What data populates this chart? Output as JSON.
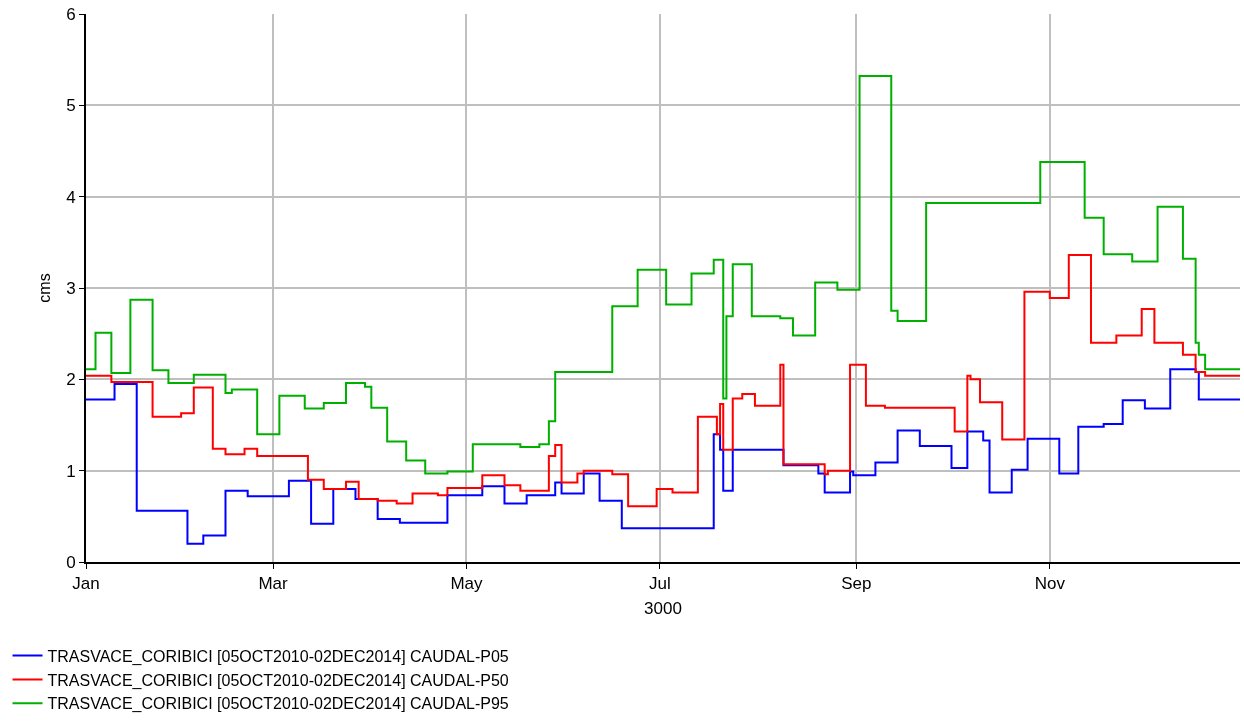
{
  "chart_data": {
    "type": "step",
    "xlabel": "3000",
    "ylabel": "cms",
    "xlim": [
      "3000-01-01",
      "3000-12-31"
    ],
    "xticks": [
      {
        "value": "3000-01-01",
        "label": "Jan"
      },
      {
        "value": "3000-03-01",
        "label": "Mar"
      },
      {
        "value": "3000-05-01",
        "label": "May"
      },
      {
        "value": "3000-07-01",
        "label": "Jul"
      },
      {
        "value": "3000-09-01",
        "label": "Sep"
      },
      {
        "value": "3000-11-01",
        "label": "Nov"
      }
    ],
    "ylim": [
      0,
      6
    ],
    "yticks": [
      0,
      1,
      2,
      3,
      4,
      5,
      6
    ],
    "grid": true,
    "legend": "bottom",
    "line_style": "solid",
    "marker": "none",
    "series": [
      {
        "name": "TRASVACE_CORIBICI [05OCT2010-02DEC2014] CAUDAL-P05",
        "color": "#0000ff",
        "x": [
          "3000-01-01",
          "3000-01-10",
          "3000-01-17",
          "3000-02-02",
          "3000-02-07",
          "3000-02-14",
          "3000-02-21",
          "3000-03-06",
          "3000-03-13",
          "3000-03-20",
          "3000-03-27",
          "3000-04-03",
          "3000-04-10",
          "3000-04-25",
          "3000-05-06",
          "3000-05-13",
          "3000-05-20",
          "3000-05-29",
          "3000-05-31",
          "3000-06-07",
          "3000-06-12",
          "3000-06-19",
          "3000-07-18",
          "3000-07-20",
          "3000-07-21",
          "3000-07-24",
          "3000-08-09",
          "3000-08-20",
          "3000-08-22",
          "3000-08-30",
          "3000-08-31",
          "3000-09-07",
          "3000-09-14",
          "3000-09-21",
          "3000-10-01",
          "3000-10-06",
          "3000-10-11",
          "3000-10-13",
          "3000-10-20",
          "3000-10-25",
          "3000-11-04",
          "3000-11-10",
          "3000-11-18",
          "3000-11-24",
          "3000-12-01",
          "3000-12-09",
          "3000-12-17",
          "3000-12-18",
          "3000-12-31"
        ],
        "values": [
          1.78,
          1.95,
          0.56,
          0.2,
          0.29,
          0.78,
          0.72,
          0.89,
          0.42,
          0.8,
          0.69,
          0.47,
          0.43,
          0.73,
          0.83,
          0.64,
          0.73,
          0.87,
          0.75,
          0.97,
          0.67,
          0.37,
          1.4,
          1.23,
          0.78,
          1.23,
          1.06,
          0.97,
          0.76,
          0.99,
          0.95,
          1.09,
          1.44,
          1.27,
          1.03,
          1.43,
          1.33,
          0.76,
          1.01,
          1.35,
          0.97,
          1.48,
          1.51,
          1.77,
          1.68,
          2.11,
          2.08,
          1.78,
          1.78
        ]
      },
      {
        "name": "TRASVACE_CORIBICI [05OCT2010-02DEC2014] CAUDAL-P50",
        "color": "#ff0000",
        "x": [
          "3000-01-01",
          "3000-01-09",
          "3000-01-22",
          "3000-01-31",
          "3000-02-04",
          "3000-02-10",
          "3000-02-14",
          "3000-02-20",
          "3000-02-24",
          "3000-03-12",
          "3000-03-17",
          "3000-03-24",
          "3000-03-28",
          "3000-04-03",
          "3000-04-09",
          "3000-04-14",
          "3000-04-22",
          "3000-04-25",
          "3000-05-06",
          "3000-05-13",
          "3000-05-18",
          "3000-05-27",
          "3000-05-29",
          "3000-05-31",
          "3000-06-05",
          "3000-06-07",
          "3000-06-16",
          "3000-06-21",
          "3000-06-30",
          "3000-07-05",
          "3000-07-13",
          "3000-07-19",
          "3000-07-20",
          "3000-07-21",
          "3000-07-24",
          "3000-07-27",
          "3000-07-31",
          "3000-08-08",
          "3000-08-09",
          "3000-08-22",
          "3000-08-23",
          "3000-08-30",
          "3000-09-04",
          "3000-09-10",
          "3000-10-02",
          "3000-10-06",
          "3000-10-07",
          "3000-10-10",
          "3000-10-17",
          "3000-10-24",
          "3000-11-01",
          "3000-11-07",
          "3000-11-14",
          "3000-11-22",
          "3000-11-30",
          "3000-12-04",
          "3000-12-13",
          "3000-12-17",
          "3000-12-20",
          "3000-12-31"
        ],
        "values": [
          2.04,
          1.97,
          1.59,
          1.63,
          1.91,
          1.24,
          1.18,
          1.24,
          1.16,
          0.9,
          0.8,
          0.88,
          0.69,
          0.67,
          0.64,
          0.75,
          0.73,
          0.81,
          0.95,
          0.84,
          0.78,
          1.16,
          1.28,
          0.87,
          0.97,
          1.0,
          0.96,
          0.61,
          0.8,
          0.76,
          1.59,
          1.4,
          1.73,
          1.23,
          1.79,
          1.84,
          1.71,
          2.16,
          1.07,
          0.96,
          1.0,
          2.16,
          1.71,
          1.69,
          1.43,
          2.04,
          2.0,
          1.75,
          1.34,
          2.96,
          2.89,
          3.36,
          2.4,
          2.48,
          2.77,
          2.4,
          2.27,
          2.08,
          2.04,
          2.04
        ]
      },
      {
        "name": "TRASVACE_CORIBICI [05OCT2010-02DEC2014] CAUDAL-P95",
        "color": "#00b000",
        "x": [
          "3000-01-01",
          "3000-01-04",
          "3000-01-09",
          "3000-01-15",
          "3000-01-22",
          "3000-01-27",
          "3000-02-04",
          "3000-02-14",
          "3000-02-16",
          "3000-02-24",
          "3000-03-03",
          "3000-03-11",
          "3000-03-17",
          "3000-03-24",
          "3000-03-30",
          "3000-04-01",
          "3000-04-06",
          "3000-04-12",
          "3000-04-18",
          "3000-04-25",
          "3000-05-03",
          "3000-05-18",
          "3000-05-24",
          "3000-05-27",
          "3000-05-29",
          "3000-06-16",
          "3000-06-24",
          "3000-07-03",
          "3000-07-11",
          "3000-07-18",
          "3000-07-21",
          "3000-07-22",
          "3000-07-24",
          "3000-07-30",
          "3000-08-08",
          "3000-08-12",
          "3000-08-19",
          "3000-08-26",
          "3000-09-02",
          "3000-09-12",
          "3000-09-14",
          "3000-09-23",
          "3000-10-29",
          "3000-11-12",
          "3000-11-18",
          "3000-11-27",
          "3000-12-05",
          "3000-12-13",
          "3000-12-17",
          "3000-12-18",
          "3000-12-20",
          "3000-12-31"
        ],
        "values": [
          2.11,
          2.51,
          2.07,
          2.87,
          2.1,
          1.96,
          2.05,
          1.85,
          1.89,
          1.4,
          1.82,
          1.68,
          1.74,
          1.96,
          1.92,
          1.69,
          1.32,
          1.11,
          0.97,
          0.99,
          1.29,
          1.26,
          1.29,
          1.54,
          2.08,
          2.8,
          3.2,
          2.82,
          3.16,
          3.31,
          1.79,
          2.69,
          3.26,
          2.69,
          2.67,
          2.48,
          3.06,
          2.98,
          5.32,
          2.75,
          2.64,
          3.93,
          4.38,
          3.77,
          3.37,
          3.29,
          3.89,
          3.32,
          2.4,
          2.27,
          2.11,
          2.11
        ]
      }
    ]
  }
}
